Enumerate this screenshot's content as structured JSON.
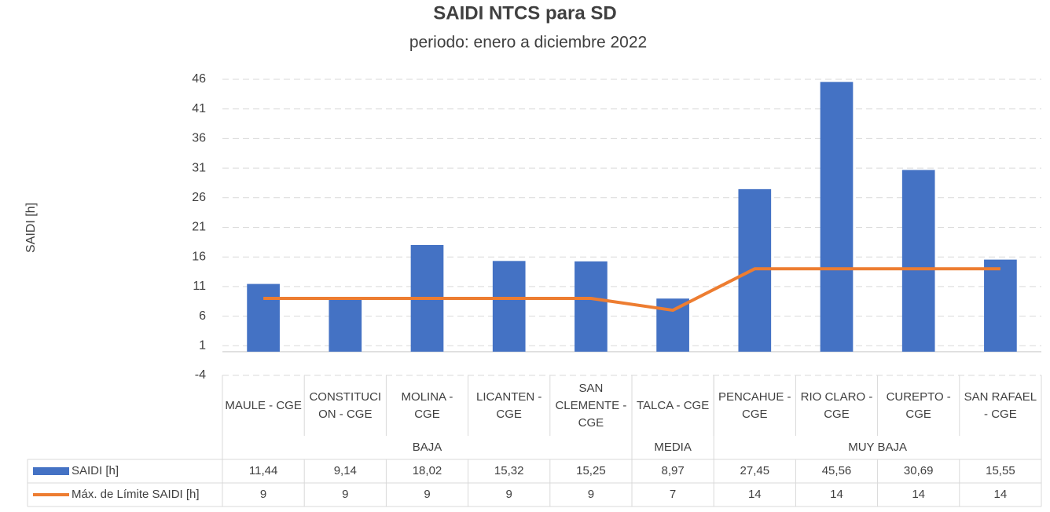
{
  "chart_data": {
    "type": "bar_line",
    "title": "SAIDI NTCS para SD",
    "subtitle": "periodo: enero a diciembre 2022",
    "y_label": "SAIDI [h]",
    "categories": [
      "MAULE - CGE",
      "CONSTITUCION - CGE",
      "MOLINA - CGE",
      "LICANTEN - CGE",
      "SAN CLEMENTE - CGE",
      "TALCA - CGE",
      "PENCAHUE - CGE",
      "RIO CLARO - CGE",
      "CUREPTO - CGE",
      "SAN RAFAEL - CGE"
    ],
    "groups": [
      {
        "name": "BAJA",
        "span": 5
      },
      {
        "name": "MEDIA",
        "span": 1
      },
      {
        "name": "MUY BAJA",
        "span": 4
      }
    ],
    "series": [
      {
        "name": "SAIDI [h]",
        "type": "bar",
        "color": "#4472c4",
        "values": [
          11.44,
          9.14,
          18.02,
          15.32,
          15.25,
          8.97,
          27.45,
          45.56,
          30.69,
          15.55
        ],
        "value_labels": [
          "11,44",
          "9,14",
          "18,02",
          "15,32",
          "15,25",
          "8,97",
          "27,45",
          "45,56",
          "30,69",
          "15,55"
        ]
      },
      {
        "name": "Máx. de Límite SAIDI [h]",
        "type": "line",
        "color": "#ed7d31",
        "values": [
          9,
          9,
          9,
          9,
          9,
          7,
          14,
          14,
          14,
          14
        ]
      }
    ],
    "ylim": [
      -4,
      46
    ],
    "yticks": [
      -4,
      1,
      6,
      11,
      16,
      21,
      26,
      31,
      36,
      41,
      46
    ],
    "grid": true,
    "data_table": true
  }
}
